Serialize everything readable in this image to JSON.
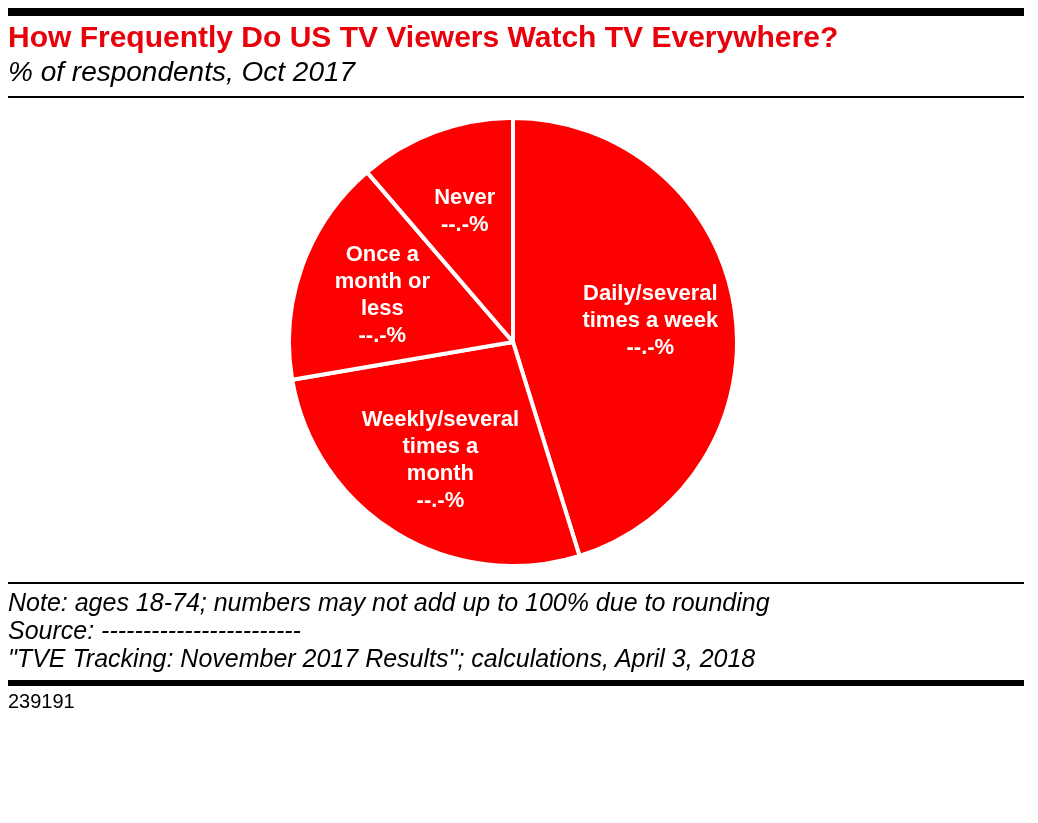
{
  "chart_data": {
    "type": "pie",
    "title": "How Frequently Do US TV Viewers Watch TV Everywhere?",
    "subtitle": "% of respondents, Oct 2017",
    "categories": [
      "Daily/several times a week",
      "Weekly/several times a month",
      "Once a month or less",
      "Never"
    ],
    "values": [
      45.2,
      27.1,
      16.4,
      11.3
    ],
    "value_labels": [
      "--.-%",
      "--.-%",
      "--.-%",
      "--.-%"
    ],
    "colors": [
      "#ff0000",
      "#ff0000",
      "#ff0000",
      "#ff0000"
    ],
    "legend": false,
    "annotations": [
      "Note: ages 18-74; numbers may not add up to 100% due to rounding",
      "Source: ------------------------",
      "\"TVE Tracking: November 2017 Results\"; calculations, April 3, 2018",
      "239191"
    ]
  }
}
